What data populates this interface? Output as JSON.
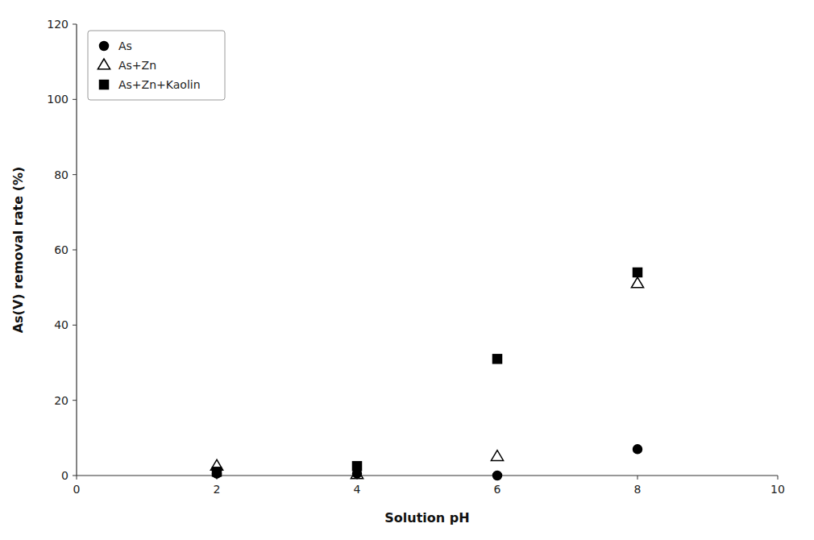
{
  "chart_data": {
    "type": "scatter",
    "xlabel": "Solution pH",
    "ylabel": "As(V) removal rate (%)",
    "xlim": [
      0,
      10
    ],
    "ylim": [
      0,
      120
    ],
    "xticks": [
      0,
      2,
      4,
      6,
      8,
      10
    ],
    "yticks": [
      0,
      20,
      40,
      60,
      80,
      100,
      120
    ],
    "x": [
      2,
      4,
      6,
      8
    ],
    "series": [
      {
        "name": "As",
        "values": [
          0.5,
          0.5,
          0.0,
          7.0
        ],
        "color": "black",
        "marker": "circle"
      },
      {
        "name": "As+Zn",
        "values": [
          2.5,
          0.2,
          5.0,
          51.0
        ],
        "color": "black",
        "marker": "triangle-open"
      },
      {
        "name": "As+Zn+Kaolin",
        "values": [
          1.0,
          2.5,
          31.0,
          54.0
        ],
        "color": "black",
        "marker": "square"
      }
    ],
    "legend": "upper left",
    "grid": false
  }
}
